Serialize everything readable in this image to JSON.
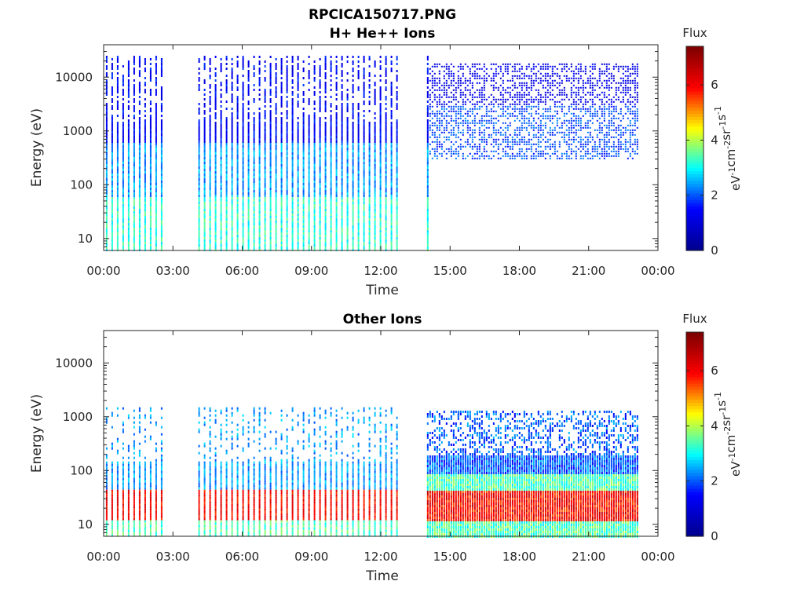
{
  "figure": {
    "title": "RPCICA150717.PNG"
  },
  "colormap": {
    "name": "jet",
    "stops": [
      "#00008f",
      "#0000ff",
      "#00ffff",
      "#ffff00",
      "#ff0000",
      "#800000"
    ]
  },
  "chart_data": [
    {
      "type": "heatmap",
      "title": "H+ He++ Ions",
      "xlabel": "Time",
      "ylabel": "Energy (eV)",
      "x_ticks": [
        "00:00",
        "03:00",
        "06:00",
        "09:00",
        "12:00",
        "15:00",
        "18:00",
        "21:00",
        "00:00"
      ],
      "x_range_hours": [
        0,
        24
      ],
      "y_scale": "log",
      "y_ticks": [
        "10",
        "100",
        "1000",
        "10000"
      ],
      "y_range": [
        6,
        40000
      ],
      "grid": false,
      "colorbar": {
        "title": "Flux",
        "units": "eV-1cm-2sr-1s-1",
        "ticks": [
          "0",
          "2",
          "4",
          "6"
        ],
        "range": [
          0,
          7.4
        ]
      },
      "data_segments": [
        {
          "start_h": 0.1,
          "end_h": 2.6,
          "pattern": "sweeps",
          "max_energy": 25000,
          "min_energy": 6
        },
        {
          "start_h": 4.1,
          "end_h": 12.8,
          "pattern": "sweeps",
          "max_energy": 25000,
          "min_energy": 6
        },
        {
          "start_h": 14.0,
          "end_h": 14.1,
          "pattern": "sweeps",
          "max_energy": 25000,
          "min_energy": 6
        },
        {
          "start_h": 14.1,
          "end_h": 23.1,
          "pattern": "continuous",
          "max_energy": 18000,
          "min_energy": 300
        }
      ],
      "flux_profile": {
        "low_energy_flux": 3.2,
        "mid_energy_flux": 2.4,
        "high_energy_flux": 1.4
      }
    },
    {
      "type": "heatmap",
      "title": "Other Ions",
      "xlabel": "Time",
      "ylabel": "Energy (eV)",
      "x_ticks": [
        "00:00",
        "03:00",
        "06:00",
        "09:00",
        "12:00",
        "15:00",
        "18:00",
        "21:00",
        "00:00"
      ],
      "x_range_hours": [
        0,
        24
      ],
      "y_scale": "log",
      "y_ticks": [
        "10",
        "100",
        "1000",
        "10000"
      ],
      "y_range": [
        6,
        40000
      ],
      "grid": false,
      "colorbar": {
        "title": "Flux",
        "units": "eV-1cm-2sr-1s-1",
        "ticks": [
          "0",
          "2",
          "4",
          "6"
        ],
        "range": [
          0,
          7.4
        ]
      },
      "data_segments": [
        {
          "start_h": 0.1,
          "end_h": 2.6,
          "pattern": "sweeps",
          "max_energy": 1500,
          "min_energy": 6
        },
        {
          "start_h": 4.1,
          "end_h": 12.8,
          "pattern": "sweeps",
          "max_energy": 1500,
          "min_energy": 6
        },
        {
          "start_h": 14.0,
          "end_h": 23.1,
          "pattern": "dense",
          "max_energy": 1300,
          "min_energy": 6
        }
      ],
      "flux_profile": {
        "band_low_energy": 12,
        "band_high_energy": 45,
        "band_flux": 6.0,
        "upper_flux": 2.4,
        "lower_flux": 3.4
      }
    }
  ]
}
